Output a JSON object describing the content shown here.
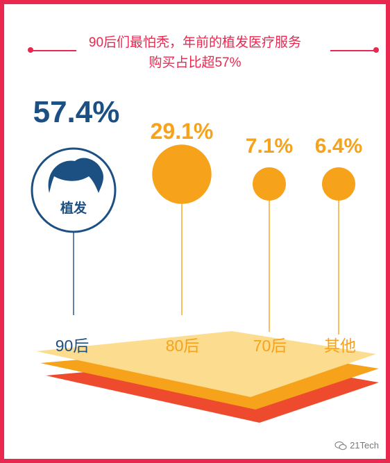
{
  "title_line1": "90后们最怕秃，年前的植发医疗服务",
  "title_line2": "购买占比超57%",
  "watermark": "21Tech",
  "hair_label": "植发",
  "colors": {
    "frame": "#e8284f",
    "highlight": "#1c4f82",
    "bubble": "#f7a21b",
    "layer_top": "#fcdc8f",
    "layer_mid": "#f7a21b",
    "layer_bottom": "#ee4b2e"
  },
  "chart_data": {
    "type": "bubble",
    "categories": [
      "90后",
      "80后",
      "70后",
      "其他"
    ],
    "values": [
      57.4,
      29.1,
      7.1,
      6.4
    ],
    "value_labels": [
      "57.4%",
      "29.1%",
      "7.1%",
      "6.4%"
    ],
    "highlight_index": 0,
    "highlight_icon": "hair-icon",
    "title": "90后们最怕秃，年前的植发医疗服务购买占比超57%",
    "xlabel": "",
    "ylabel": ""
  }
}
